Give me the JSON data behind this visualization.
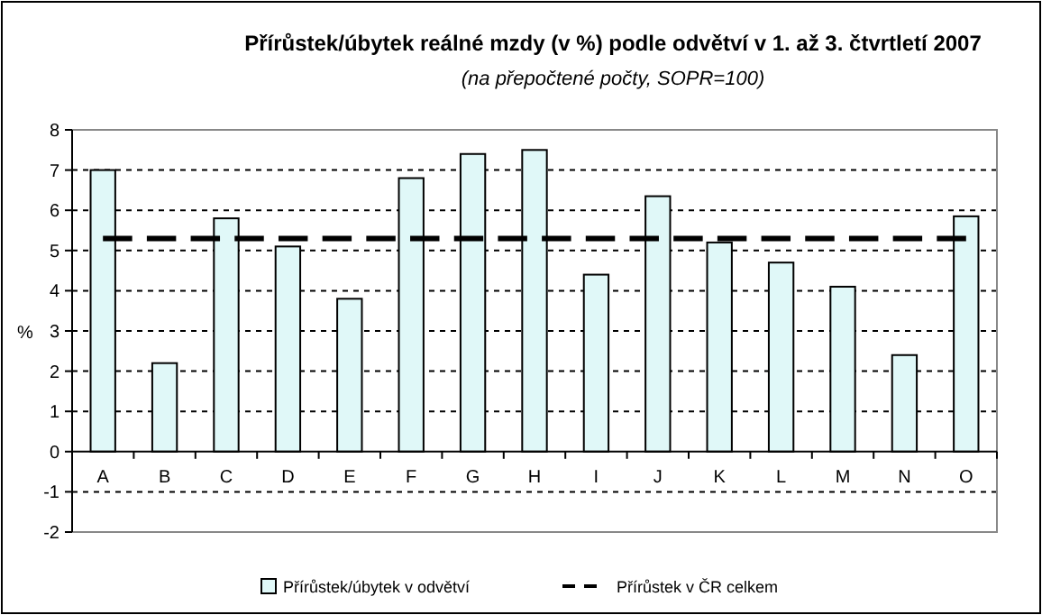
{
  "chart_data": {
    "type": "bar",
    "title": "Přírůstek/úbytek reálné mzdy (v %) podle odvětví v 1. až 3. čtvrtletí 2007",
    "subtitle": "(na přepočtené počty, SOPR=100)",
    "ylabel": "%",
    "categories": [
      "A",
      "B",
      "C",
      "D",
      "E",
      "F",
      "G",
      "H",
      "I",
      "J",
      "K",
      "L",
      "M",
      "N",
      "O"
    ],
    "series": [
      {
        "name": "Přírůstek/úbytek  v odvětví",
        "color": "#e0f8f8",
        "values": [
          7.0,
          2.2,
          5.8,
          5.1,
          3.8,
          6.8,
          7.4,
          7.5,
          4.4,
          6.35,
          5.2,
          4.7,
          4.1,
          2.4,
          5.85
        ]
      },
      {
        "name": "Přírůstek v ČR celkem",
        "type": "line",
        "color": "#000000",
        "line_style": "dashed",
        "marker": "none",
        "values": [
          5.3,
          5.3,
          5.3,
          5.3,
          5.3,
          5.3,
          5.3,
          5.3,
          5.3,
          5.3,
          5.3,
          5.3,
          5.3,
          5.3,
          5.3
        ]
      }
    ],
    "ylim": [
      -2,
      8
    ],
    "yticks": [
      -2,
      -1,
      0,
      1,
      2,
      3,
      4,
      5,
      6,
      7,
      8
    ],
    "grid": "y",
    "legend": "bottom"
  }
}
